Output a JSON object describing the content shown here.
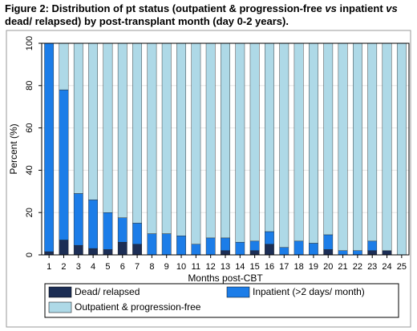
{
  "figure": {
    "title_line1_a": "Figure 2: Distribution of pt status (outpatient & progression-free ",
    "title_line1_b": "vs",
    "title_line1_c": " inpatient ",
    "title_line1_d": "vs",
    "title_line2": "dead/ relapsed) by post-transplant month (day 0-2 years)."
  },
  "colors": {
    "dead": "#1c2e55",
    "inpatient": "#1c7de8",
    "outpatient": "#aed9e7",
    "grid": "#e6e6e6",
    "frame": "#000000"
  },
  "chart_data": {
    "type": "bar",
    "stacked": true,
    "categories": [
      "1",
      "2",
      "3",
      "4",
      "5",
      "6",
      "7",
      "8",
      "9",
      "10",
      "11",
      "12",
      "13",
      "14",
      "15",
      "16",
      "17",
      "18",
      "19",
      "20",
      "21",
      "22",
      "23",
      "24",
      "25"
    ],
    "series": [
      {
        "name": "Dead/ relapsed",
        "values": [
          1.5,
          7,
          4.5,
          3,
          2.5,
          6,
          5,
          0,
          0,
          0,
          0,
          0,
          2,
          0,
          2,
          5,
          0,
          0,
          0,
          2.5,
          0,
          0,
          2,
          2,
          0
        ]
      },
      {
        "name": "Inpatient (>2 days/ month)",
        "values": [
          98.5,
          71,
          24.5,
          23,
          17.5,
          11.5,
          10,
          10,
          10,
          9,
          5,
          8,
          6,
          6,
          4.5,
          6,
          3.5,
          6.5,
          5.5,
          7,
          2,
          2,
          4.5,
          0,
          0
        ]
      },
      {
        "name": "Outpatient &  progression-free",
        "values": [
          0,
          22,
          71,
          74,
          80,
          82.5,
          85,
          90,
          90,
          91,
          95,
          92,
          92,
          94,
          93.5,
          89,
          96.5,
          93.5,
          94.5,
          90.5,
          98,
          98,
          93.5,
          98,
          100
        ]
      }
    ],
    "xlabel": "Months post-CBT",
    "ylabel": "Percent (%)",
    "ylim": [
      0,
      100
    ],
    "yticks": [
      0,
      20,
      40,
      60,
      80,
      100
    ],
    "grid": true,
    "legend_placement": "bottom"
  }
}
